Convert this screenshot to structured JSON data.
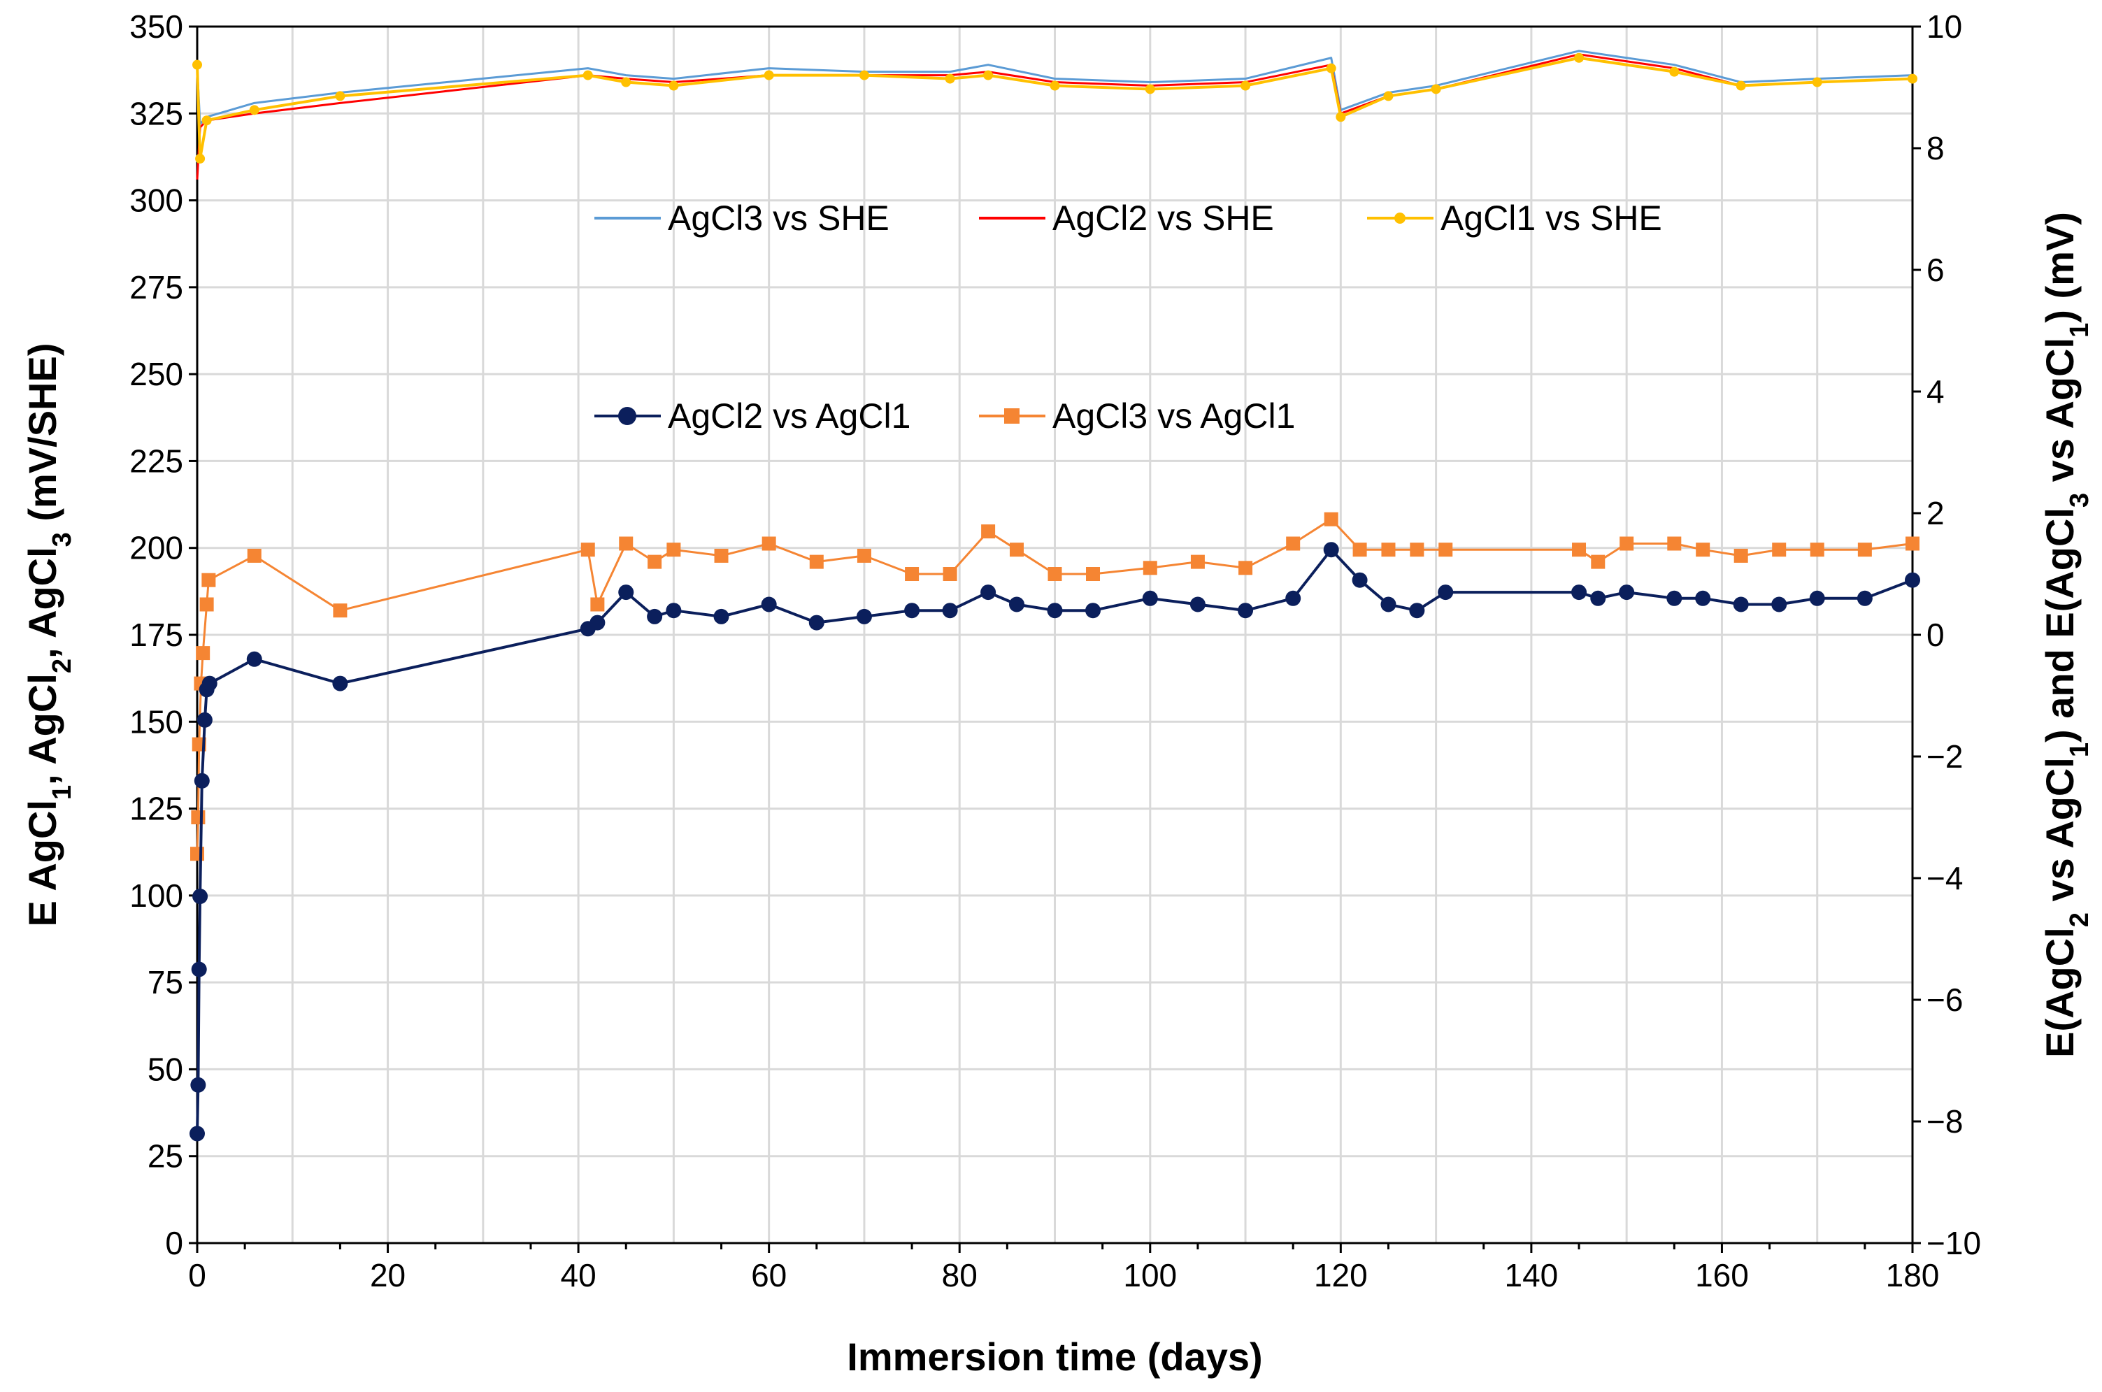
{
  "chart_data": {
    "type": "line",
    "xlabel": "Immersion time (days)",
    "ylabel_left": {
      "prefix": "E AgCl",
      "parts": [
        {
          "sub": "1",
          "after": ", AgCl"
        },
        {
          "sub": "2",
          "after": ", AgCl"
        },
        {
          "sub": "3",
          "after": "  (mV/SHE)"
        }
      ]
    },
    "ylabel_right": {
      "prefix": "E(AgCl",
      "parts": [
        {
          "sub": "2",
          "after": " vs AgCl"
        },
        {
          "sub": "1",
          "after": ") and E(AgCl"
        },
        {
          "sub": "3",
          "after": " vs AgCl"
        },
        {
          "sub": "1",
          "after": ") (mV)"
        }
      ]
    },
    "xlim": [
      0,
      180
    ],
    "ylim_left": [
      0,
      350
    ],
    "ylim_right": [
      -10,
      10
    ],
    "x_ticks": [
      0,
      20,
      40,
      60,
      80,
      100,
      120,
      140,
      160,
      180
    ],
    "x_tick_labels": [
      "0",
      "20",
      "40",
      "60",
      "80",
      "100",
      "120",
      "140",
      "160",
      "180"
    ],
    "y_left_ticks": [
      0,
      25,
      50,
      75,
      100,
      125,
      150,
      175,
      200,
      225,
      250,
      275,
      300,
      325,
      350
    ],
    "y_left_tick_labels": [
      "0",
      "25",
      "50",
      "75",
      "100",
      "125",
      "150",
      "175",
      "200",
      "225",
      "250",
      "275",
      "300",
      "325",
      "350"
    ],
    "y_right_ticks": [
      -10,
      -8,
      -6,
      -4,
      -2,
      0,
      2,
      4,
      6,
      8,
      10
    ],
    "y_right_tick_labels": [
      "−10",
      "−8",
      "−6",
      "−4",
      "−2",
      "0",
      "2",
      "4",
      "6",
      "8",
      "10"
    ],
    "grid": true,
    "series": [
      {
        "name": "AgCl3 vs SHE",
        "axis": "left",
        "color": "#5B9BD5",
        "marker": "none",
        "x": [
          0,
          0.3,
          1,
          6,
          15,
          41,
          45,
          50,
          60,
          70,
          79,
          83,
          90,
          100,
          110,
          119,
          120,
          125,
          130,
          145,
          155,
          162,
          170,
          180
        ],
        "y": [
          338,
          322,
          324,
          328,
          331,
          338,
          336,
          335,
          338,
          337,
          337,
          339,
          335,
          334,
          335,
          341,
          326,
          331,
          333,
          343,
          339,
          334,
          335,
          336
        ]
      },
      {
        "name": "AgCl2 vs SHE",
        "axis": "left",
        "color": "#FF0000",
        "marker": "none",
        "x": [
          0,
          0.3,
          1,
          6,
          15,
          41,
          45,
          50,
          60,
          70,
          79,
          83,
          90,
          100,
          110,
          119,
          120,
          125,
          130,
          145,
          155,
          162,
          170,
          180
        ],
        "y": [
          306,
          321,
          323,
          325,
          328,
          336,
          335,
          334,
          336,
          336,
          336,
          337,
          334,
          333,
          334,
          339,
          325,
          330,
          332,
          342,
          338,
          333,
          334,
          335
        ]
      },
      {
        "name": "AgCl1 vs SHE",
        "axis": "left",
        "color": "#FFC000",
        "marker": "dot",
        "x": [
          0,
          0.3,
          1,
          6,
          15,
          41,
          45,
          50,
          60,
          70,
          79,
          83,
          90,
          100,
          110,
          119,
          120,
          125,
          130,
          145,
          155,
          162,
          170,
          180
        ],
        "y": [
          339,
          312,
          323,
          326,
          330,
          336,
          334,
          333,
          336,
          336,
          335,
          336,
          333,
          332,
          333,
          338,
          324,
          330,
          332,
          341,
          337,
          333,
          334,
          335
        ]
      },
      {
        "name": "AgCl2 vs AgCl1",
        "axis": "right",
        "color": "#0B1F5C",
        "marker": "circle",
        "x": [
          0,
          0.1,
          0.2,
          0.3,
          0.5,
          0.8,
          1,
          1.3,
          6,
          15,
          41,
          42,
          45,
          48,
          50,
          55,
          60,
          65,
          70,
          75,
          79,
          83,
          86,
          90,
          94,
          100,
          105,
          110,
          115,
          119,
          122,
          125,
          128,
          131,
          145,
          147,
          150,
          155,
          158,
          162,
          166,
          170,
          175,
          180
        ],
        "y": [
          -8.2,
          -7.4,
          -5.5,
          -4.3,
          -2.4,
          -1.4,
          -0.9,
          -0.8,
          -0.4,
          -0.8,
          0.1,
          0.2,
          0.7,
          0.3,
          0.4,
          0.3,
          0.5,
          0.2,
          0.3,
          0.4,
          0.4,
          0.7,
          0.5,
          0.4,
          0.4,
          0.6,
          0.5,
          0.4,
          0.6,
          1.4,
          0.9,
          0.5,
          0.4,
          0.7,
          0.7,
          0.6,
          0.7,
          0.6,
          0.6,
          0.5,
          0.5,
          0.6,
          0.6,
          0.9
        ]
      },
      {
        "name": "AgCl3 vs AgCl1",
        "axis": "right",
        "color": "#F58533",
        "marker": "square",
        "x": [
          0,
          0.1,
          0.2,
          0.4,
          0.6,
          1,
          1.2,
          6,
          15,
          41,
          42,
          45,
          48,
          50,
          55,
          60,
          65,
          70,
          75,
          79,
          83,
          86,
          90,
          94,
          100,
          105,
          110,
          115,
          119,
          122,
          125,
          128,
          131,
          145,
          147,
          150,
          155,
          158,
          162,
          166,
          170,
          175,
          180
        ],
        "y": [
          -3.6,
          -3.0,
          -1.8,
          -0.8,
          -0.3,
          0.5,
          0.9,
          1.3,
          0.4,
          1.4,
          0.5,
          1.5,
          1.2,
          1.4,
          1.3,
          1.5,
          1.2,
          1.3,
          1.0,
          1.0,
          1.7,
          1.4,
          1.0,
          1.0,
          1.1,
          1.2,
          1.1,
          1.5,
          1.9,
          1.4,
          1.4,
          1.4,
          1.4,
          1.4,
          1.2,
          1.5,
          1.5,
          1.4,
          1.3,
          1.4,
          1.4,
          1.4,
          1.5
        ]
      }
    ]
  }
}
